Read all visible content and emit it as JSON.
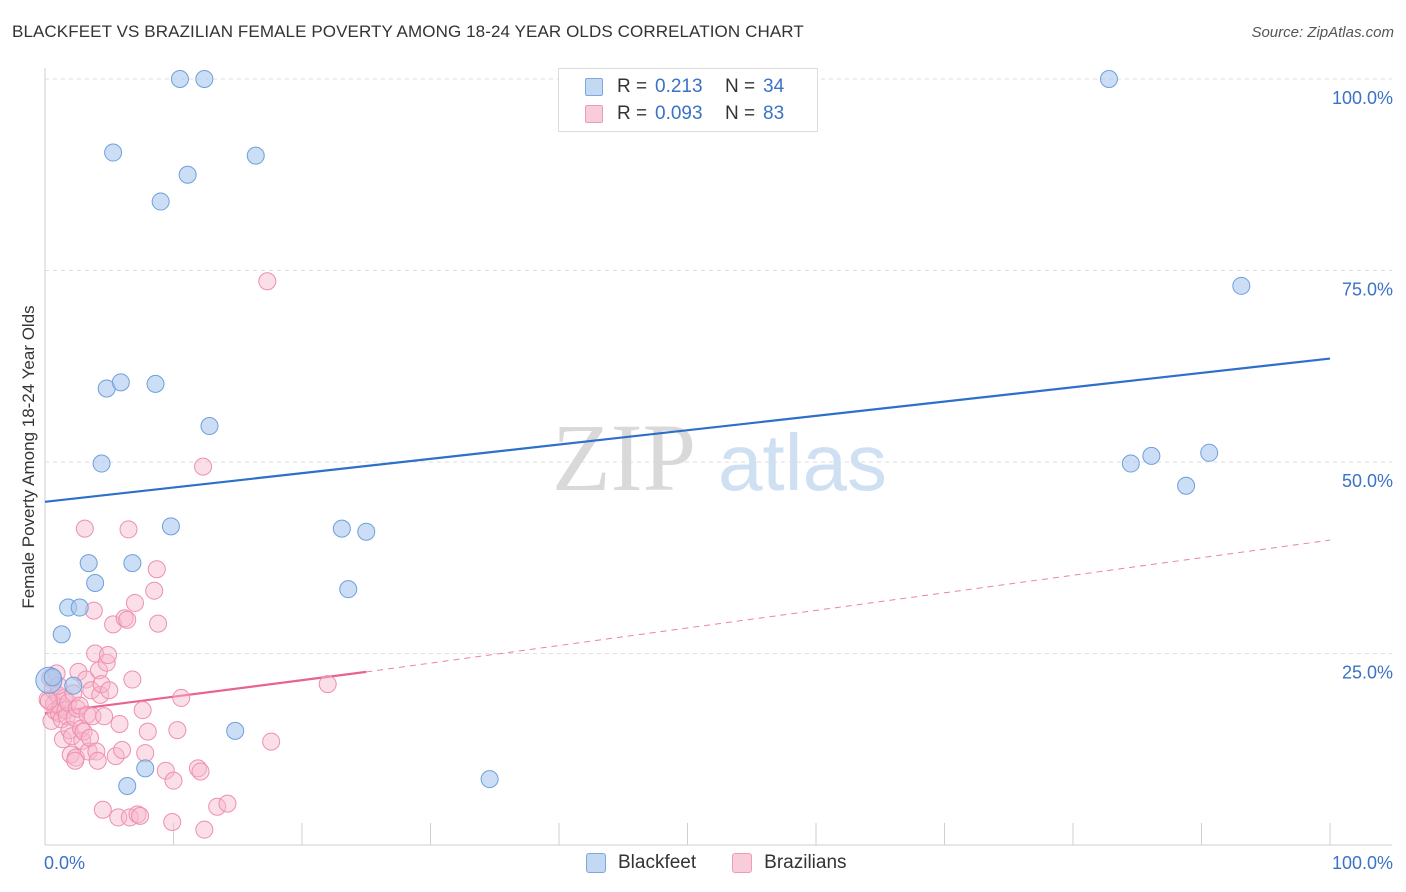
{
  "title": "BLACKFEET VS BRAZILIAN FEMALE POVERTY AMONG 18-24 YEAR OLDS CORRELATION CHART",
  "source": "Source: ZipAtlas.com",
  "watermark": {
    "part1": "ZIP",
    "part2": "atlas"
  },
  "legend": {
    "rows": [
      {
        "r_label": "R =",
        "r_value": "0.213",
        "n_label": "N =",
        "n_value": "34"
      },
      {
        "r_label": "R =",
        "r_value": "0.093",
        "n_label": "N =",
        "n_value": "83"
      }
    ]
  },
  "bottom_legend": {
    "items": [
      "Blackfeet",
      "Brazilians"
    ]
  },
  "colors": {
    "blackfeet_fill": "#a9c8ee",
    "blackfeet_stroke": "#6f9fdc",
    "blackfeet_line": "#2f6fc9",
    "brazilians_fill": "#f6b9cd",
    "brazilians_stroke": "#ee8fae",
    "brazilians_line": "#e8638e",
    "axis_label": "#3a72c6"
  },
  "chart_data": {
    "type": "scatter",
    "title": "BLACKFEET VS BRAZILIAN FEMALE POVERTY AMONG 18-24 YEAR OLDS CORRELATION CHART",
    "xlabel": "",
    "ylabel": "Female Poverty Among 18-24 Year Olds",
    "xlim": [
      0,
      100
    ],
    "ylim": [
      0,
      100
    ],
    "x_tick_labels": [
      "0.0%",
      "100.0%"
    ],
    "y_ticks": [
      25,
      50,
      75,
      100
    ],
    "y_tick_labels": [
      "25.0%",
      "50.0%",
      "75.0%",
      "100.0%"
    ],
    "grid": true,
    "legend_placement": "top-center",
    "series": [
      {
        "name": "Blackfeet",
        "r": 0.213,
        "n": 34,
        "trend": {
          "x": [
            0,
            100
          ],
          "y": [
            44.8,
            63.5
          ],
          "style": "solid"
        },
        "points": [
          [
            0.3,
            21.5
          ],
          [
            1.3,
            27.5
          ],
          [
            1.8,
            31.0
          ],
          [
            2.2,
            20.8
          ],
          [
            2.7,
            31.0
          ],
          [
            3.4,
            36.8
          ],
          [
            3.9,
            34.2
          ],
          [
            4.4,
            49.8
          ],
          [
            4.8,
            59.6
          ],
          [
            5.3,
            90.4
          ],
          [
            5.9,
            60.4
          ],
          [
            6.4,
            7.7
          ],
          [
            6.8,
            36.8
          ],
          [
            7.8,
            10.0
          ],
          [
            8.6,
            60.2
          ],
          [
            9.0,
            84.0
          ],
          [
            9.8,
            41.6
          ],
          [
            10.5,
            100.0
          ],
          [
            11.1,
            87.5
          ],
          [
            12.4,
            100.0
          ],
          [
            12.8,
            54.7
          ],
          [
            14.8,
            14.9
          ],
          [
            16.4,
            90.0
          ],
          [
            23.1,
            41.3
          ],
          [
            23.6,
            33.4
          ],
          [
            25.0,
            40.9
          ],
          [
            34.6,
            8.6
          ],
          [
            82.8,
            100.0
          ],
          [
            84.5,
            49.8
          ],
          [
            86.1,
            50.8
          ],
          [
            88.8,
            46.9
          ],
          [
            90.6,
            51.2
          ],
          [
            93.1,
            73.0
          ],
          [
            0.6,
            21.9
          ]
        ]
      },
      {
        "name": "Brazilians",
        "r": 0.093,
        "n": 83,
        "trend": {
          "x": [
            0,
            25,
            100
          ],
          "y": [
            17.2,
            22.6,
            39.8
          ],
          "solid_until": 25
        },
        "points": [
          [
            0.2,
            19.0
          ],
          [
            0.4,
            21.8
          ],
          [
            0.5,
            16.2
          ],
          [
            0.6,
            20.3
          ],
          [
            0.7,
            18.4
          ],
          [
            0.8,
            17.5
          ],
          [
            0.9,
            22.4
          ],
          [
            1.0,
            19.6
          ],
          [
            1.1,
            17.2
          ],
          [
            1.2,
            18.0
          ],
          [
            1.3,
            16.4
          ],
          [
            1.4,
            13.8
          ],
          [
            1.5,
            19.2
          ],
          [
            1.6,
            17.6
          ],
          [
            1.7,
            16.8
          ],
          [
            1.8,
            18.6
          ],
          [
            1.9,
            15.0
          ],
          [
            2.0,
            11.8
          ],
          [
            2.1,
            14.2
          ],
          [
            2.2,
            19.8
          ],
          [
            2.3,
            16.6
          ],
          [
            2.4,
            11.4
          ],
          [
            2.5,
            17.8
          ],
          [
            2.6,
            22.6
          ],
          [
            2.7,
            18.2
          ],
          [
            2.8,
            15.2
          ],
          [
            2.9,
            13.6
          ],
          [
            3.0,
            14.8
          ],
          [
            3.1,
            41.3
          ],
          [
            3.2,
            21.6
          ],
          [
            3.3,
            17.0
          ],
          [
            3.4,
            12.2
          ],
          [
            3.5,
            14.0
          ],
          [
            3.6,
            20.2
          ],
          [
            3.7,
            16.8
          ],
          [
            3.8,
            30.6
          ],
          [
            3.9,
            25.0
          ],
          [
            4.0,
            12.2
          ],
          [
            4.1,
            11.0
          ],
          [
            4.2,
            22.8
          ],
          [
            4.3,
            19.6
          ],
          [
            4.4,
            21.0
          ],
          [
            4.5,
            4.6
          ],
          [
            4.6,
            16.8
          ],
          [
            4.8,
            23.8
          ],
          [
            4.9,
            24.8
          ],
          [
            5.0,
            20.2
          ],
          [
            5.3,
            28.8
          ],
          [
            5.5,
            11.6
          ],
          [
            5.7,
            3.6
          ],
          [
            5.8,
            15.8
          ],
          [
            6.0,
            12.4
          ],
          [
            6.2,
            29.6
          ],
          [
            6.4,
            29.4
          ],
          [
            6.5,
            41.2
          ],
          [
            6.6,
            3.6
          ],
          [
            6.8,
            21.6
          ],
          [
            7.0,
            31.6
          ],
          [
            7.2,
            4.0
          ],
          [
            7.4,
            3.8
          ],
          [
            7.6,
            17.6
          ],
          [
            7.8,
            12.0
          ],
          [
            8.0,
            14.8
          ],
          [
            8.5,
            33.2
          ],
          [
            8.7,
            36.0
          ],
          [
            8.8,
            28.9
          ],
          [
            9.4,
            9.7
          ],
          [
            9.9,
            3.0
          ],
          [
            10.0,
            8.4
          ],
          [
            10.3,
            15.0
          ],
          [
            10.6,
            19.2
          ],
          [
            11.9,
            10.0
          ],
          [
            12.1,
            9.6
          ],
          [
            12.3,
            49.4
          ],
          [
            12.4,
            2.0
          ],
          [
            13.4,
            5.0
          ],
          [
            14.2,
            5.4
          ],
          [
            17.3,
            73.6
          ],
          [
            17.6,
            13.5
          ],
          [
            22.0,
            21.0
          ],
          [
            0.3,
            18.8
          ],
          [
            1.05,
            20.8
          ],
          [
            2.35,
            11.0
          ]
        ]
      }
    ]
  }
}
